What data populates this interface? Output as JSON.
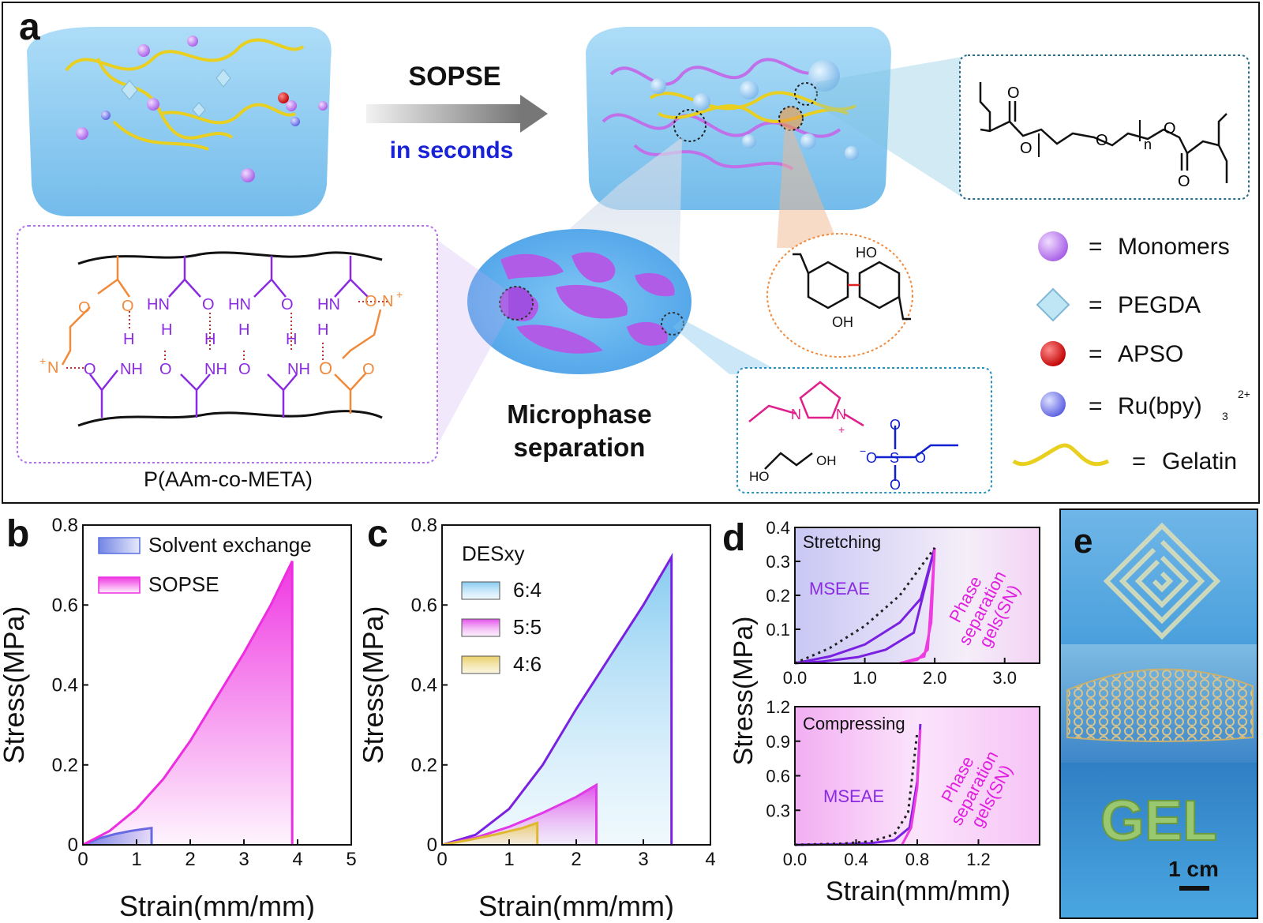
{
  "panel_labels": {
    "a": "a",
    "b": "b",
    "c": "c",
    "d": "d",
    "e": "e"
  },
  "panel_a": {
    "arrow_top": "SOPSE",
    "arrow_bottom": "in seconds",
    "microphase_line1": "Microphase",
    "microphase_line2": "separation",
    "polymer_name": "P(AAm-co-META)",
    "legend": [
      {
        "name": "Monomers",
        "eq": "="
      },
      {
        "name": "PEGDA",
        "eq": "="
      },
      {
        "name": "APSO",
        "eq": "="
      },
      {
        "name": "Ru(bpy)",
        "sub": "3",
        "sup": "2+",
        "eq": "="
      },
      {
        "name": "Gelatin",
        "eq": "="
      }
    ],
    "chem": {
      "O": "O",
      "n": "n",
      "HO": "HO",
      "OH": "OH",
      "HN": "HN",
      "H": "H",
      "NH": "NH",
      "N": "N",
      "plus": "+",
      "minus": "−",
      "S": "S"
    },
    "colors": {
      "gel": "#7ec3ee",
      "monomer": "#b070e8",
      "gelatin": "#e8cf20",
      "orange": "#f08a3c",
      "purple": "#8a2be2",
      "blue": "#1020d0",
      "pink": "#e0208a"
    }
  },
  "chart_data": [
    {
      "id": "b",
      "type": "area",
      "xlabel": "Strain(mm/mm)",
      "ylabel": "Stress(MPa)",
      "xlim": [
        0,
        5
      ],
      "ylim": [
        0,
        0.8
      ],
      "xticks": [
        "0",
        "1",
        "2",
        "3",
        "4",
        "5"
      ],
      "yticks": [
        "0",
        "0.2",
        "0.4",
        "0.6",
        "0.8"
      ],
      "series": [
        {
          "name": "Solvent exchange",
          "color": "#5a6fe0",
          "x": [
            0,
            0.3,
            0.6,
            0.9,
            1.1,
            1.28,
            1.28
          ],
          "y": [
            0,
            0.016,
            0.027,
            0.035,
            0.039,
            0.042,
            0
          ]
        },
        {
          "name": "SOPSE",
          "color": "#ee2ce0",
          "x": [
            0,
            0.5,
            1.0,
            1.5,
            2.0,
            2.5,
            3.0,
            3.5,
            3.9,
            3.9
          ],
          "y": [
            0,
            0.035,
            0.09,
            0.165,
            0.26,
            0.37,
            0.48,
            0.6,
            0.71,
            0
          ]
        }
      ]
    },
    {
      "id": "c",
      "type": "area",
      "xlabel": "Strain(mm/mm)",
      "ylabel": "Stress(MPa)",
      "legend_title": "DESxy",
      "xlim": [
        0,
        4
      ],
      "ylim": [
        0,
        0.8
      ],
      "xticks": [
        "0",
        "1",
        "2",
        "3",
        "4"
      ],
      "yticks": [
        "0",
        "0.2",
        "0.4",
        "0.6",
        "0.8"
      ],
      "series": [
        {
          "name": "6:4",
          "color": "#7a20e0",
          "x": [
            0,
            0.5,
            1.0,
            1.5,
            2.0,
            2.5,
            3.0,
            3.42,
            3.42
          ],
          "y": [
            0,
            0.025,
            0.09,
            0.2,
            0.34,
            0.47,
            0.6,
            0.72,
            0
          ]
        },
        {
          "name": "5:5",
          "color": "#e03ae8",
          "x": [
            0,
            0.5,
            1.0,
            1.5,
            2.0,
            2.3,
            2.3
          ],
          "y": [
            0,
            0.018,
            0.045,
            0.08,
            0.12,
            0.15,
            0
          ]
        },
        {
          "name": "4:6",
          "color": "#e0b830",
          "x": [
            0,
            0.4,
            0.8,
            1.2,
            1.42,
            1.42
          ],
          "y": [
            0,
            0.012,
            0.026,
            0.042,
            0.055,
            0
          ]
        }
      ]
    },
    {
      "id": "d_top",
      "type": "line",
      "title": "Stretching",
      "ylabel": "Stress(MPa)",
      "xlim": [
        0,
        3.5
      ],
      "ylim": [
        0,
        0.4
      ],
      "xticks": [
        "0.0",
        "1.0",
        "2.0",
        "3.0"
      ],
      "yticks": [
        "0.1",
        "0.2",
        "0.3",
        "0.4"
      ],
      "label_mseae": "MSEAE",
      "label_phase": [
        "Phase",
        "separation",
        "gels(SN)"
      ],
      "series": [
        {
          "name": "MSEAE loading",
          "color": "#7a20e0",
          "x": [
            0,
            0.5,
            1.0,
            1.5,
            1.8,
            2.0
          ],
          "y": [
            0,
            0.02,
            0.055,
            0.12,
            0.19,
            0.34
          ]
        },
        {
          "name": "MSEAE unloading",
          "color": "#7a20e0",
          "x": [
            2.0,
            1.7,
            1.3,
            0.9,
            0.4,
            0
          ],
          "y": [
            0.34,
            0.09,
            0.04,
            0.018,
            0.005,
            0
          ]
        },
        {
          "name": "Phase separation gels(SN)",
          "color": "#ee3ce0",
          "x": [
            1.5,
            1.75,
            1.9,
            2.0,
            1.95,
            1.85,
            1.5
          ],
          "y": [
            0,
            0.01,
            0.04,
            0.34,
            0.12,
            0.02,
            0
          ]
        },
        {
          "name": "Reference",
          "color": "#222222",
          "dash": true,
          "x": [
            0,
            0.5,
            1.0,
            1.5,
            2.0
          ],
          "y": [
            0,
            0.045,
            0.11,
            0.2,
            0.34
          ]
        }
      ]
    },
    {
      "id": "d_bottom",
      "type": "line",
      "title": "Compressing",
      "xlabel": "Strain(mm/mm)",
      "ylabel": "Stress(MPa)",
      "xlim": [
        0,
        1.6
      ],
      "ylim": [
        0,
        1.2
      ],
      "xticks": [
        "0.0",
        "0.4",
        "0.8",
        "1.2"
      ],
      "yticks": [
        "0.3",
        "0.6",
        "0.9",
        "1.2"
      ],
      "label_mseae": "MSEAE",
      "label_phase": [
        "Phase",
        "separation",
        "gels(SN)"
      ],
      "series": [
        {
          "name": "MSEAE",
          "color": "#7a20e0",
          "x": [
            0,
            0.3,
            0.5,
            0.65,
            0.75,
            0.8,
            0.82
          ],
          "y": [
            0,
            0.005,
            0.015,
            0.04,
            0.15,
            0.55,
            1.05
          ]
        },
        {
          "name": "Phase separation gels(SN)",
          "color": "#ee3ce0",
          "x": [
            0.7,
            0.76,
            0.8,
            0.82
          ],
          "y": [
            0,
            0.15,
            0.5,
            1.0
          ]
        },
        {
          "name": "Reference",
          "color": "#222222",
          "dash": true,
          "x": [
            0,
            0.3,
            0.5,
            0.65,
            0.74,
            0.8
          ],
          "y": [
            0,
            0.01,
            0.03,
            0.09,
            0.28,
            0.98
          ]
        }
      ]
    }
  ],
  "panel_e": {
    "scale_label": "1 cm",
    "gel_text": "GEL"
  }
}
